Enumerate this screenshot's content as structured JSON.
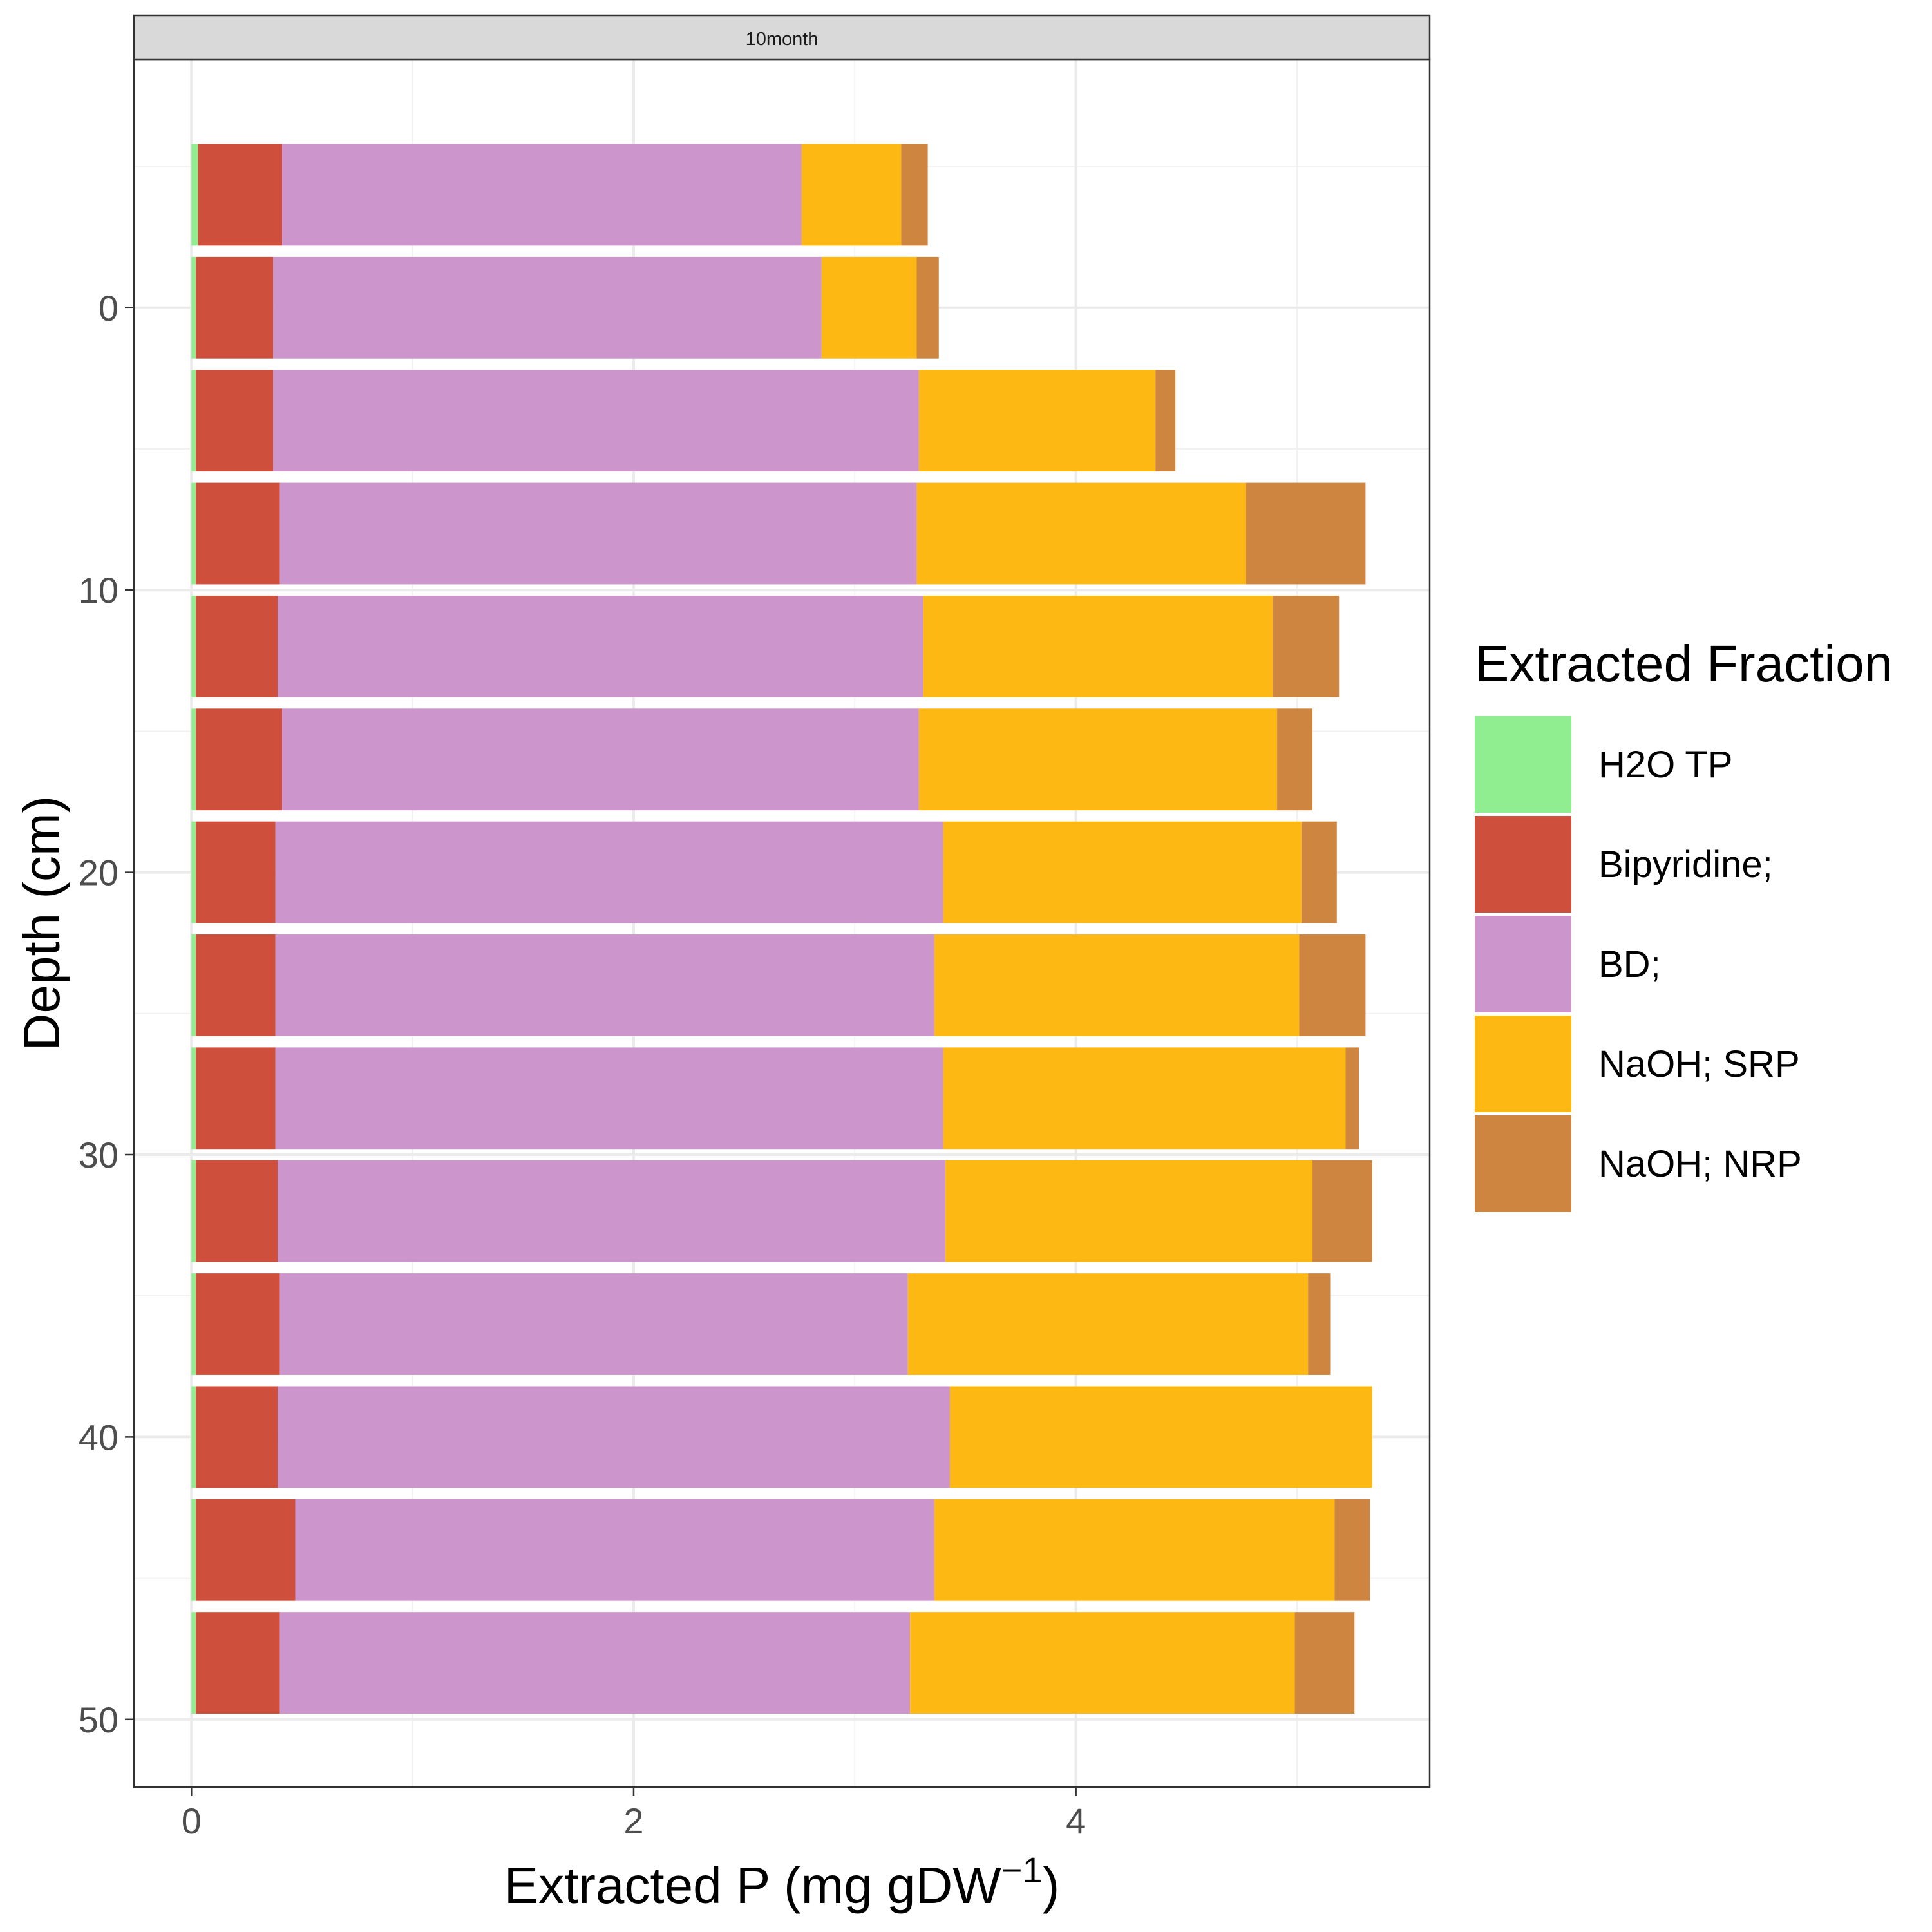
{
  "chart_data": {
    "type": "bar",
    "orientation": "horizontal",
    "stacked": true,
    "facet_label": "10month",
    "xlabel": "Extracted P (mg gDW",
    "xlabel_superscript": "−1",
    "xlabel_suffix": ")",
    "ylabel": "Depth (cm)",
    "xlim": [
      -0.26,
      5.6
    ],
    "ylim": [
      -8.8,
      52.4
    ],
    "y_reversed": true,
    "grid": true,
    "x_ticks": [
      0,
      2,
      4
    ],
    "y_ticks": [
      0,
      10,
      20,
      30,
      40,
      50
    ],
    "bar_height": 3.6,
    "depths": [
      -4,
      0,
      4,
      8,
      12,
      16,
      20,
      24,
      28,
      32,
      36,
      40,
      44,
      48
    ],
    "series": [
      {
        "name": "H2O TP",
        "color": "#90EE90",
        "values": [
          0.03,
          0.02,
          0.02,
          0.02,
          0.02,
          0.02,
          0.02,
          0.02,
          0.02,
          0.02,
          0.02,
          0.02,
          0.02,
          0.02
        ]
      },
      {
        "name": "Bipyridine;",
        "color": "#CD4F3C",
        "values": [
          0.38,
          0.35,
          0.35,
          0.38,
          0.37,
          0.39,
          0.36,
          0.36,
          0.36,
          0.37,
          0.38,
          0.37,
          0.45,
          0.38
        ]
      },
      {
        "name": "BD;",
        "color": "#CC96CC",
        "values": [
          2.35,
          2.48,
          2.92,
          2.88,
          2.92,
          2.88,
          3.02,
          2.98,
          3.02,
          3.02,
          2.84,
          3.04,
          2.89,
          2.85
        ]
      },
      {
        "name": "NaOH; SRP",
        "color": "#FDB813",
        "values": [
          0.45,
          0.43,
          1.07,
          1.49,
          1.58,
          1.62,
          1.62,
          1.65,
          1.82,
          1.66,
          1.81,
          1.91,
          1.81,
          1.74
        ]
      },
      {
        "name": "NaOH; NRP",
        "color": "#CD853F",
        "values": [
          0.12,
          0.1,
          0.09,
          0.54,
          0.3,
          0.16,
          0.16,
          0.3,
          0.06,
          0.27,
          0.1,
          0.0,
          0.16,
          0.27
        ]
      }
    ],
    "legend": {
      "title": "Extracted Fraction",
      "position": "right"
    }
  }
}
